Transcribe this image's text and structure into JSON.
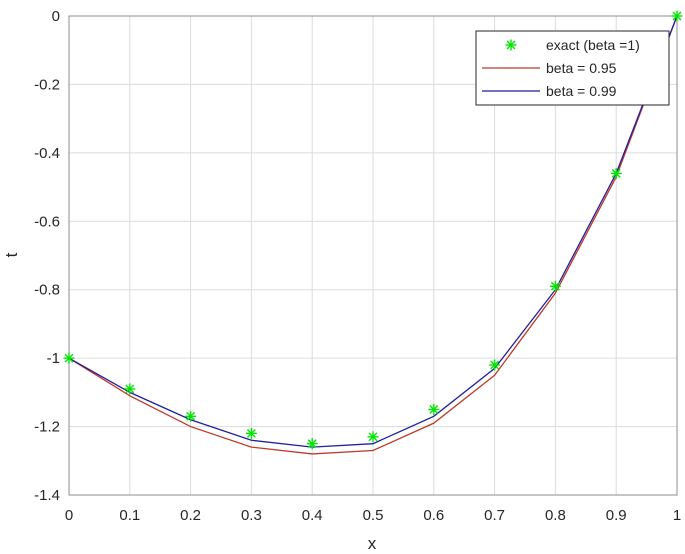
{
  "chart_data": {
    "type": "line",
    "xlabel": "x",
    "ylabel": "t",
    "xlim": [
      0,
      1
    ],
    "ylim": [
      -1.4,
      0
    ],
    "grid": true,
    "legend_position": "top-right",
    "x_ticks": [
      "0",
      "0.1",
      "0.2",
      "0.3",
      "0.4",
      "0.5",
      "0.6",
      "0.7",
      "0.8",
      "0.9",
      "1"
    ],
    "y_ticks": [
      "0",
      "-0.2",
      "-0.4",
      "-0.6",
      "-0.8",
      "-1",
      "-1.2",
      "-1.4"
    ],
    "x": [
      0,
      0.1,
      0.2,
      0.3,
      0.4,
      0.5,
      0.6,
      0.7,
      0.8,
      0.9,
      1.0
    ],
    "series": [
      {
        "name": "exact (beta =1)",
        "style": "markers",
        "marker": "asterisk",
        "color": "#00e600",
        "values": [
          -1.0,
          -1.09,
          -1.17,
          -1.22,
          -1.25,
          -1.23,
          -1.15,
          -1.02,
          -0.79,
          -0.46,
          0.0
        ]
      },
      {
        "name": "beta = 0.95",
        "style": "line",
        "color": "#c0392b",
        "values": [
          -1.0,
          -1.11,
          -1.2,
          -1.26,
          -1.28,
          -1.27,
          -1.19,
          -1.05,
          -0.81,
          -0.47,
          0.0
        ]
      },
      {
        "name": "beta = 0.99",
        "style": "line",
        "color": "#1f1fa0",
        "values": [
          -1.0,
          -1.1,
          -1.18,
          -1.24,
          -1.26,
          -1.25,
          -1.17,
          -1.03,
          -0.8,
          -0.46,
          0.0
        ]
      }
    ]
  }
}
